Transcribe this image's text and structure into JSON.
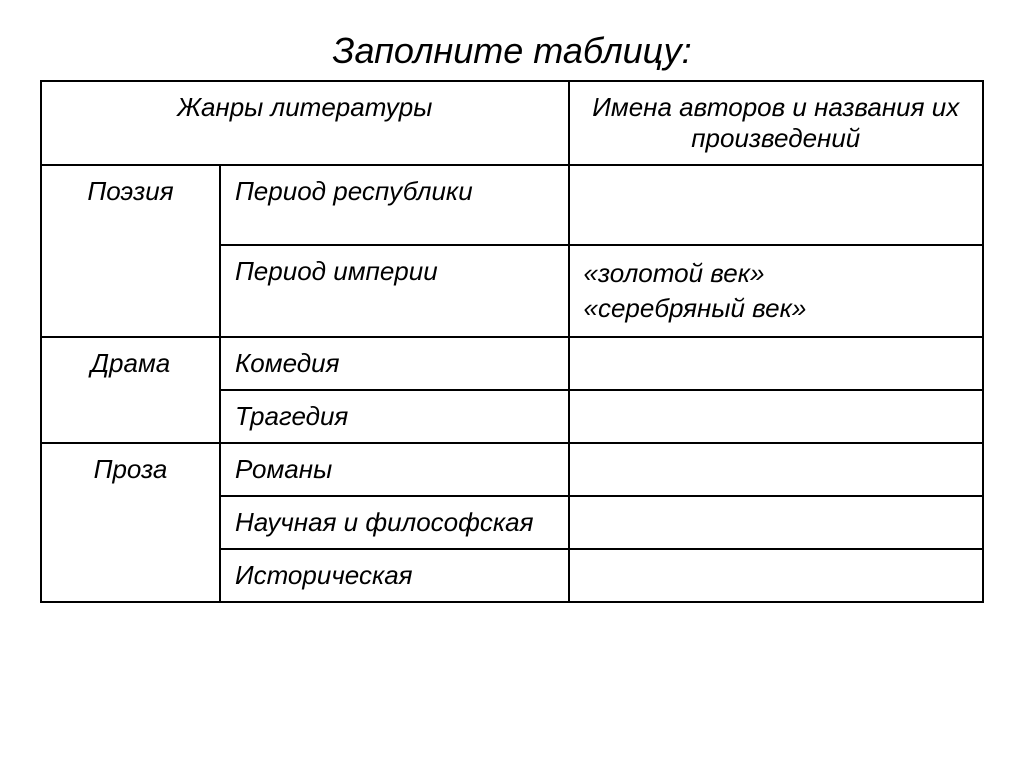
{
  "title": "Заполните таблицу:",
  "headers": {
    "col1": "Жанры литературы",
    "col2": "Имена авторов и названия их произведений"
  },
  "rows": {
    "poetry": {
      "label": "Поэзия",
      "sub1": "Период республики",
      "sub2": "Период империи",
      "val1": "",
      "val2_line1": "«золотой век»",
      "val2_line2": "«серебряный век»"
    },
    "drama": {
      "label": "Драма",
      "sub1": "Комедия",
      "sub2": "Трагедия",
      "val1": "",
      "val2": ""
    },
    "prose": {
      "label": "Проза",
      "sub1": "Романы",
      "sub2": "Научная и философская",
      "sub3": "Историческая",
      "val1": "",
      "val2": "",
      "val3": ""
    }
  },
  "style": {
    "background_color": "#ffffff",
    "border_color": "#000000",
    "text_color": "#000000",
    "title_fontsize": 36,
    "cell_fontsize": 26,
    "font_style": "italic",
    "col_widths_pct": [
      19,
      37,
      44
    ]
  }
}
